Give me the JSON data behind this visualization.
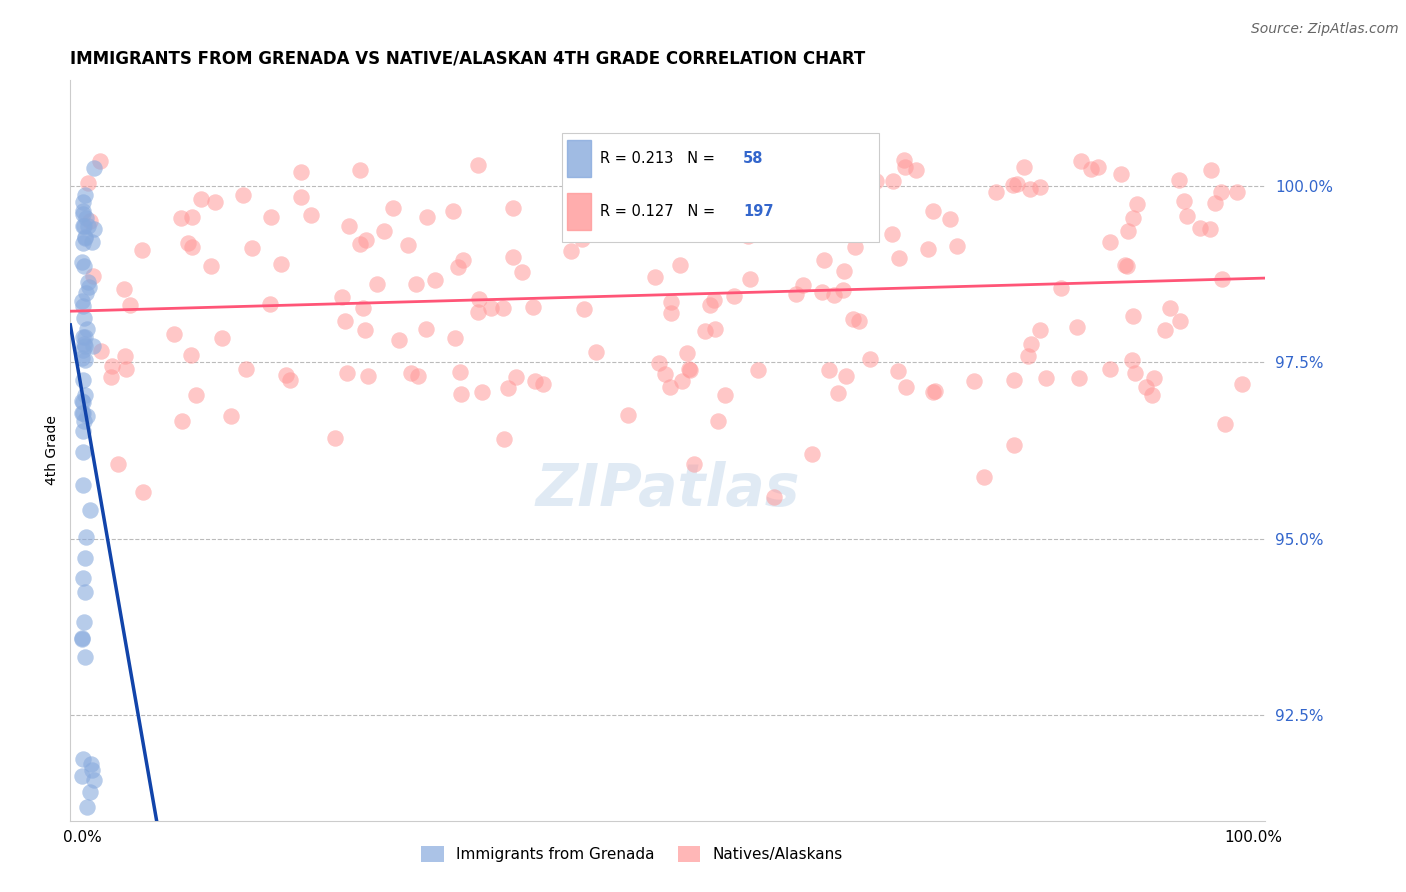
{
  "title": "IMMIGRANTS FROM GRENADA VS NATIVE/ALASKAN 4TH GRADE CORRELATION CHART",
  "source": "Source: ZipAtlas.com",
  "ylabel": "4th Grade",
  "yticks": [
    92.5,
    95.0,
    97.5,
    100.0
  ],
  "ytick_labels": [
    "92.5%",
    "95.0%",
    "97.5%",
    "100.0%"
  ],
  "xlim": [
    -1,
    101
  ],
  "ylim": [
    91.0,
    101.5
  ],
  "blue_color": "#88AADD",
  "pink_color": "#FF9999",
  "blue_line_color": "#1144AA",
  "pink_line_color": "#FF5577",
  "legend_r1": "R = 0.213",
  "legend_n1": "58",
  "legend_r2": "R = 0.127",
  "legend_n2": "197",
  "legend_color": "#3366CC",
  "watermark_text": "ZIPatlas",
  "bottom_legend_1": "Immigrants from Grenada",
  "bottom_legend_2": "Natives/Alaskans"
}
